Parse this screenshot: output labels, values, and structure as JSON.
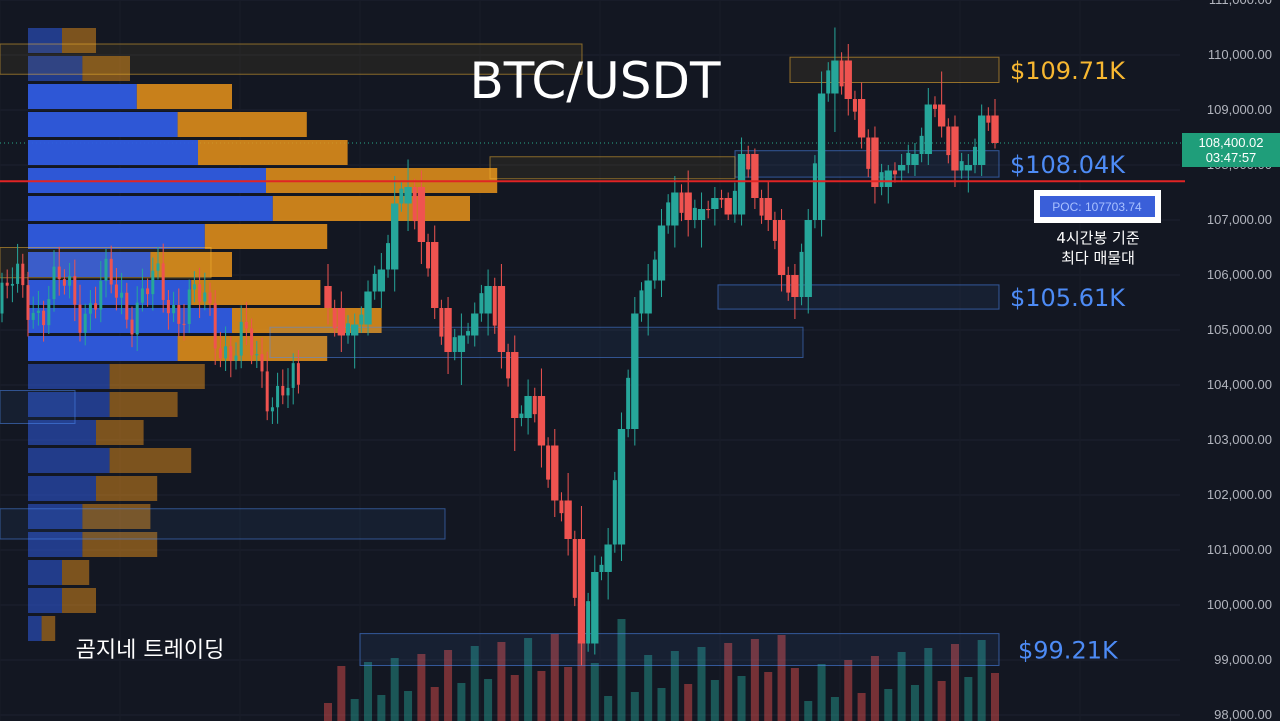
{
  "chart_data": {
    "type": "candlestick",
    "title": "BTC/USDT",
    "ylim": [
      98000,
      111000
    ],
    "y_ticks": [
      "111,000.00",
      "110,000.00",
      "109,000.00",
      "108,000.00",
      "107,000.00",
      "106,000.00",
      "105,000.00",
      "104,000.00",
      "103,000.00",
      "102,000.00",
      "101,000.00",
      "100,000.00",
      "99,000.00",
      "98,000.00"
    ],
    "current_price": "108,400.02",
    "countdown": "03:47:57",
    "poc_label": "POC: 107703.74",
    "poc_value": 107703.74,
    "levels": [
      {
        "label": "$109.71K",
        "low": 109500,
        "high": 109960,
        "color": "#f7b731",
        "kind": "resistance"
      },
      {
        "label": "$108.04K",
        "low": 107780,
        "high": 108260,
        "color": "#4d8bf5",
        "kind": "support"
      },
      {
        "label": "$105.61K",
        "low": 105380,
        "high": 105820,
        "color": "#4d8bf5",
        "kind": "support"
      },
      {
        "label": "$99.21K",
        "low": 98900,
        "high": 99480,
        "color": "#4d8bf5",
        "kind": "support"
      }
    ],
    "annotations": [
      "4시간봉 기준",
      "최다 매물대"
    ],
    "series": [
      {
        "name": "candles",
        "values": [
          [
            105800,
            106200,
            105100,
            105400
          ],
          [
            105400,
            105700,
            104600,
            104900
          ],
          [
            104900,
            105300,
            104300,
            105100
          ],
          [
            105100,
            105900,
            104900,
            105700
          ],
          [
            105700,
            106400,
            105400,
            106100
          ],
          [
            106100,
            107800,
            105700,
            107300
          ],
          [
            107300,
            108100,
            106800,
            107600
          ],
          [
            107600,
            107900,
            106200,
            106600
          ],
          [
            106600,
            106900,
            105200,
            105400
          ],
          [
            105400,
            105600,
            104200,
            104600
          ],
          [
            104600,
            105300,
            104000,
            104900
          ],
          [
            104900,
            105500,
            104700,
            105300
          ],
          [
            105300,
            106100,
            104900,
            105800
          ],
          [
            105800,
            106200,
            104300,
            104600
          ],
          [
            104600,
            104900,
            102800,
            103400
          ],
          [
            103400,
            104100,
            103100,
            103800
          ],
          [
            103800,
            104300,
            102500,
            102900
          ],
          [
            102900,
            103200,
            101600,
            101900
          ],
          [
            101900,
            102400,
            100900,
            101200
          ],
          [
            101200,
            101800,
            98900,
            99300
          ],
          [
            99300,
            100900,
            99100,
            100600
          ],
          [
            100600,
            101400,
            100100,
            101100
          ],
          [
            101100,
            103500,
            100800,
            103200
          ],
          [
            103200,
            105600,
            102900,
            105300
          ],
          [
            105300,
            106200,
            104900,
            105900
          ],
          [
            105900,
            107200,
            105600,
            106900
          ],
          [
            106900,
            107800,
            106500,
            107500
          ],
          [
            107500,
            107900,
            106700,
            107000
          ],
          [
            107000,
            107500,
            106500,
            107200
          ],
          [
            107200,
            107600,
            106900,
            107400
          ],
          [
            107400,
            107500,
            107000,
            107100
          ],
          [
            107100,
            108500,
            106900,
            108200
          ],
          [
            108200,
            108300,
            107200,
            107400
          ],
          [
            107400,
            107700,
            106800,
            107000
          ],
          [
            107000,
            107200,
            105700,
            106000
          ],
          [
            106000,
            106200,
            105200,
            105600
          ],
          [
            105600,
            107200,
            105300,
            107000
          ],
          [
            107000,
            109700,
            106700,
            109300
          ],
          [
            109300,
            110500,
            108600,
            109900
          ],
          [
            109900,
            110200,
            108900,
            109200
          ],
          [
            109200,
            109500,
            108300,
            108500
          ],
          [
            108500,
            108700,
            107300,
            107600
          ],
          [
            107600,
            108000,
            107300,
            107900
          ],
          [
            107900,
            108200,
            107700,
            108000
          ],
          [
            108000,
            108400,
            107800,
            108200
          ],
          [
            108200,
            109400,
            108000,
            109100
          ],
          [
            109100,
            109700,
            108500,
            108700
          ],
          [
            108700,
            108900,
            107600,
            107900
          ],
          [
            107900,
            108200,
            107500,
            108000
          ],
          [
            108000,
            109100,
            107800,
            108900
          ],
          [
            108900,
            109200,
            108300,
            108400
          ]
        ]
      }
    ],
    "volume_profile": [
      {
        "buy": 0.05,
        "sell": 0.05
      },
      {
        "buy": 0.08,
        "sell": 0.07
      },
      {
        "buy": 0.16,
        "sell": 0.14
      },
      {
        "buy": 0.22,
        "sell": 0.19
      },
      {
        "buy": 0.25,
        "sell": 0.22
      },
      {
        "buy": 0.35,
        "sell": 0.34
      },
      {
        "buy": 0.36,
        "sell": 0.29
      },
      {
        "buy": 0.26,
        "sell": 0.18
      },
      {
        "buy": 0.18,
        "sell": 0.12
      },
      {
        "buy": 0.24,
        "sell": 0.19
      },
      {
        "buy": 0.3,
        "sell": 0.22
      },
      {
        "buy": 0.22,
        "sell": 0.22
      },
      {
        "buy": 0.12,
        "sell": 0.14
      },
      {
        "buy": 0.12,
        "sell": 0.1
      },
      {
        "buy": 0.1,
        "sell": 0.07
      },
      {
        "buy": 0.12,
        "sell": 0.12
      },
      {
        "buy": 0.1,
        "sell": 0.09
      },
      {
        "buy": 0.08,
        "sell": 0.1
      },
      {
        "buy": 0.08,
        "sell": 0.11
      },
      {
        "buy": 0.05,
        "sell": 0.04
      },
      {
        "buy": 0.05,
        "sell": 0.05
      },
      {
        "buy": 0.02,
        "sell": 0.02
      }
    ],
    "grid": true
  },
  "brand": "곰지네 트레이딩",
  "colors": {
    "background": "#131722",
    "up": "#26a69a",
    "down": "#ef5350",
    "profile_buy": "#2f5be0",
    "profile_sell": "#e8921a",
    "poc_line": "#e02424",
    "price_tag": "#1f9e7a"
  }
}
